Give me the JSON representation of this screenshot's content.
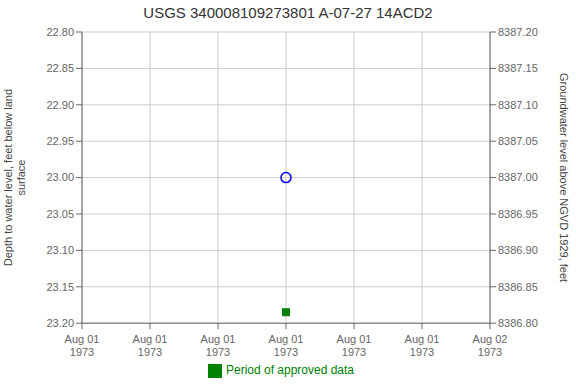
{
  "chart_data": {
    "type": "scatter",
    "title": "USGS 340008109273801 A-07-27 14ACD2",
    "ylabel": "Depth to water level, feet below land\nsurface",
    "y2label": "Groundwater level above NGVD 1929, feet",
    "categories": [
      "Aug 01\n1973",
      "Aug 01\n1973",
      "Aug 01\n1973",
      "Aug 01\n1973",
      "Aug 01\n1973",
      "Aug 01\n1973",
      "Aug 02\n1973"
    ],
    "series": [
      {
        "color": "#0000ff",
        "marker": "circle",
        "values": [
          null,
          null,
          null,
          23.0,
          null,
          null,
          null
        ]
      },
      {
        "name": "Period of approved data",
        "color": "#008000",
        "marker": "square",
        "values": [
          null,
          null,
          null,
          23.185,
          null,
          null,
          null
        ]
      }
    ],
    "ylim": [
      23.2,
      22.8
    ],
    "yticks": [
      {
        "value": 22.8,
        "label": "22.80"
      },
      22.85,
      {
        "value": 22.9,
        "label": "22.90"
      },
      22.95,
      {
        "value": 23,
        "label": "23.00"
      },
      23.05,
      {
        "value": 23.1,
        "label": "23.10"
      },
      23.15,
      {
        "value": 23.2,
        "label": "23.20"
      }
    ],
    "y2lim": [
      8386.8,
      8387.2
    ],
    "y2ticks": [
      {
        "value": 8386.8,
        "label": "8386.80"
      },
      8386.85,
      {
        "value": 8386.9,
        "label": "8386.90"
      },
      8386.95,
      {
        "value": 8387,
        "label": "8387.00"
      },
      8387.05,
      {
        "value": 8387.1,
        "label": "8387.10"
      },
      8387.15,
      {
        "value": 8387.2,
        "label": "8387.20"
      }
    ],
    "grid": true
  }
}
